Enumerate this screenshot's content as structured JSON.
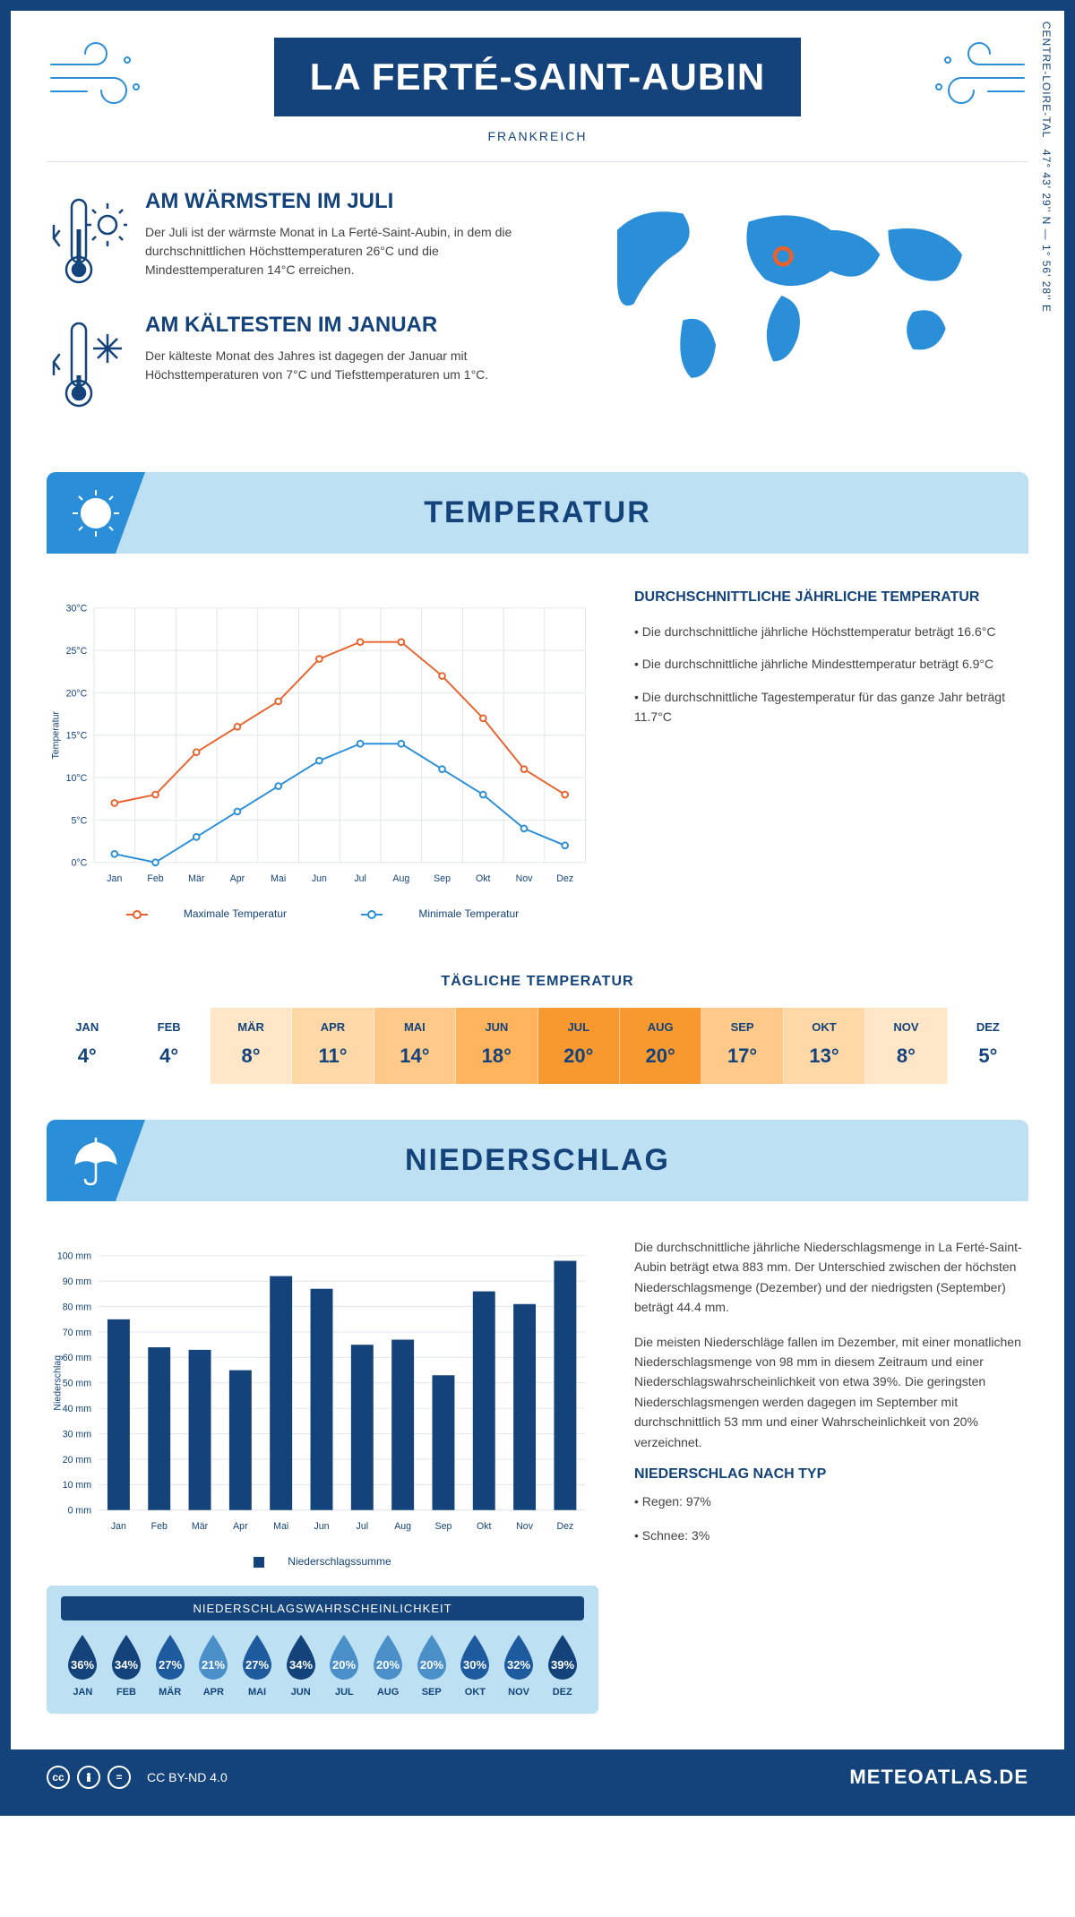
{
  "header": {
    "title": "LA FERTÉ-SAINT-AUBIN",
    "country": "FRANKREICH"
  },
  "coords": {
    "text": "47° 43' 29'' N — 1° 56' 28'' E",
    "region": "CENTRE-LOIRE-TAL"
  },
  "colors": {
    "primary": "#13437a",
    "accent": "#2a8fd8",
    "light_blue": "#bde1f2",
    "max_line": "#e9612b",
    "min_line": "#2a8fd8",
    "bar": "#13437a",
    "grid": "#e0e6ec",
    "marker": "#e9612b"
  },
  "warmest": {
    "title": "AM WÄRMSTEN IM JULI",
    "text": "Der Juli ist der wärmste Monat in La Ferté-Saint-Aubin, in dem die durchschnittlichen Höchsttemperaturen 26°C und die Mindesttemperaturen 14°C erreichen."
  },
  "coldest": {
    "title": "AM KÄLTESTEN IM JANUAR",
    "text": "Der kälteste Monat des Jahres ist dagegen der Januar mit Höchsttemperaturen von 7°C und Tiefsttemperaturen um 1°C."
  },
  "sections": {
    "temperature": "TEMPERATUR",
    "precipitation": "NIEDERSCHLAG"
  },
  "temp_chart": {
    "months": [
      "Jan",
      "Feb",
      "Mär",
      "Apr",
      "Mai",
      "Jun",
      "Jul",
      "Aug",
      "Sep",
      "Okt",
      "Nov",
      "Dez"
    ],
    "max_values": [
      7,
      8,
      13,
      16,
      19,
      24,
      26,
      26,
      22,
      17,
      11,
      8
    ],
    "min_values": [
      1,
      0,
      3,
      6,
      9,
      12,
      14,
      14,
      11,
      8,
      4,
      2
    ],
    "y_min": 0,
    "y_max": 30,
    "y_step": 5,
    "y_label": "Temperatur",
    "legend_max": "Maximale Temperatur",
    "legend_min": "Minimale Temperatur",
    "line_width": 2,
    "marker_radius": 3.5
  },
  "temp_summary": {
    "title": "DURCHSCHNITTLICHE JÄHRLICHE TEMPERATUR",
    "bullets": [
      "• Die durchschnittliche jährliche Höchsttemperatur beträgt 16.6°C",
      "• Die durchschnittliche jährliche Mindesttemperatur beträgt 6.9°C",
      "• Die durchschnittliche Tagestemperatur für das ganze Jahr beträgt 11.7°C"
    ]
  },
  "daily": {
    "title": "TÄGLICHE TEMPERATUR",
    "months": [
      "JAN",
      "FEB",
      "MÄR",
      "APR",
      "MAI",
      "JUN",
      "JUL",
      "AUG",
      "SEP",
      "OKT",
      "NOV",
      "DEZ"
    ],
    "values": [
      "4°",
      "4°",
      "8°",
      "11°",
      "14°",
      "18°",
      "20°",
      "20°",
      "17°",
      "13°",
      "8°",
      "5°"
    ],
    "bg_colors": [
      "#ffffff",
      "#ffffff",
      "#ffe6c7",
      "#ffd8a8",
      "#ffc98a",
      "#ffb35c",
      "#f8992f",
      "#f8992f",
      "#ffc98a",
      "#ffd8a8",
      "#ffe6c7",
      "#ffffff"
    ]
  },
  "precip_chart": {
    "months": [
      "Jan",
      "Feb",
      "Mär",
      "Apr",
      "Mai",
      "Jun",
      "Jul",
      "Aug",
      "Sep",
      "Okt",
      "Nov",
      "Dez"
    ],
    "values": [
      75,
      64,
      63,
      55,
      92,
      87,
      65,
      67,
      53,
      86,
      81,
      98
    ],
    "y_min": 0,
    "y_max": 100,
    "y_step": 10,
    "y_label": "Niederschlag",
    "legend": "Niederschlagssumme",
    "bar_width": 0.55
  },
  "precip_text": {
    "p1": "Die durchschnittliche jährliche Niederschlagsmenge in La Ferté-Saint-Aubin beträgt etwa 883 mm. Der Unterschied zwischen der höchsten Niederschlagsmenge (Dezember) und der niedrigsten (September) beträgt 44.4 mm.",
    "p2": "Die meisten Niederschläge fallen im Dezember, mit einer monatlichen Niederschlagsmenge von 98 mm in diesem Zeitraum und einer Niederschlagswahrscheinlichkeit von etwa 39%. Die geringsten Niederschlagsmengen werden dagegen im September mit durchschnittlich 53 mm und einer Wahrscheinlichkeit von 20% verzeichnet.",
    "type_title": "NIEDERSCHLAG NACH TYP",
    "type_rain": "• Regen: 97%",
    "type_snow": "• Schnee: 3%"
  },
  "precip_prob": {
    "title": "NIEDERSCHLAGSWAHRSCHEINLICHKEIT",
    "months": [
      "JAN",
      "FEB",
      "MÄR",
      "APR",
      "MAI",
      "JUN",
      "JUL",
      "AUG",
      "SEP",
      "OKT",
      "NOV",
      "DEZ"
    ],
    "values": [
      36,
      34,
      27,
      21,
      27,
      34,
      20,
      20,
      20,
      30,
      32,
      39
    ],
    "colors": [
      "#13437a",
      "#13437a",
      "#1e5a9e",
      "#4b8fc8",
      "#1e5a9e",
      "#13437a",
      "#4b8fc8",
      "#4b8fc8",
      "#4b8fc8",
      "#1e5a9e",
      "#1e5a9e",
      "#13437a"
    ]
  },
  "footer": {
    "license": "CC BY-ND 4.0",
    "brand": "METEOATLAS.DE"
  }
}
